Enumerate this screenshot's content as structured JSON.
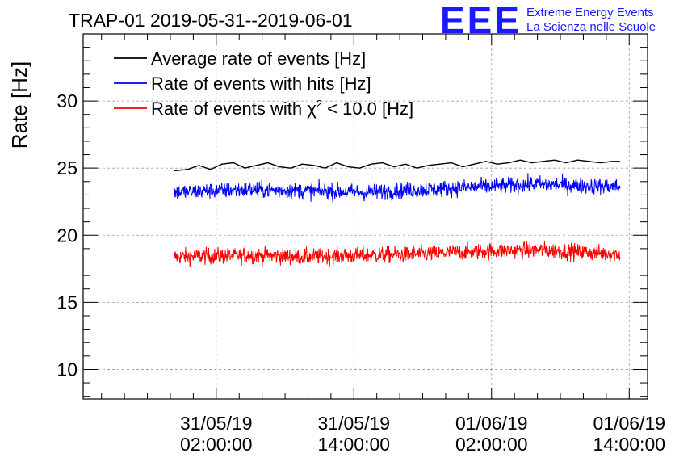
{
  "title": "TRAP-01 2019-05-31--2019-06-01",
  "logo": {
    "mark": "EEE",
    "line1": "Extreme Energy Events",
    "line2": "La Scienza nelle Scuole",
    "color": "#1a1aff"
  },
  "chart_data": {
    "type": "line",
    "title": "TRAP-01 2019-05-31--2019-06-01",
    "xlabel": "",
    "ylabel": "Rate [Hz]",
    "ylim": [
      7.8,
      35.0
    ],
    "xlim_hours": [
      -9.6,
      39.6
    ],
    "x_unit": "hours since 2019-05-31 00:00",
    "grid": true,
    "legend_position": "top-left",
    "x_ticks": [
      {
        "hour": 2,
        "date": "31/05/19",
        "time": "02:00:00"
      },
      {
        "hour": 14,
        "date": "31/05/19",
        "time": "14:00:00"
      },
      {
        "hour": 26,
        "date": "01/06/19",
        "time": "02:00:00"
      },
      {
        "hour": 38,
        "date": "01/06/19",
        "time": "14:00:00"
      }
    ],
    "y_ticks": [
      10,
      15,
      20,
      25,
      30
    ],
    "data_range_hours": [
      -1.7,
      37.2
    ],
    "series": [
      {
        "name": "Average rate of events [Hz]",
        "color": "#000000",
        "x": [
          -1.7,
          -0.5,
          0.5,
          1.5,
          2.5,
          3.5,
          4.5,
          5.5,
          6.5,
          7.5,
          8.5,
          9.5,
          10.5,
          11.5,
          12.5,
          13.5,
          14.5,
          15.5,
          16.5,
          17.5,
          18.5,
          19.5,
          20.5,
          21.5,
          22.5,
          23.5,
          24.5,
          25.5,
          26.5,
          27.5,
          28.5,
          29.5,
          30.5,
          31.5,
          32.5,
          33.5,
          34.5,
          35.5,
          36.5,
          37.2
        ],
        "values": [
          24.8,
          24.9,
          25.2,
          24.9,
          25.3,
          25.4,
          25.0,
          25.2,
          25.4,
          25.1,
          25.0,
          25.3,
          25.2,
          25.0,
          25.4,
          25.1,
          25.0,
          25.3,
          25.4,
          25.1,
          25.3,
          25.0,
          25.2,
          25.3,
          25.4,
          25.1,
          25.3,
          25.5,
          25.3,
          25.4,
          25.6,
          25.4,
          25.5,
          25.6,
          25.4,
          25.6,
          25.5,
          25.4,
          25.5,
          25.5
        ]
      },
      {
        "name": "Rate of events with hits [Hz]",
        "color": "#0000ff",
        "mean": 23.5,
        "noise_range": [
          22.0,
          26.0
        ],
        "x": [
          -1.7,
          5,
          10,
          15,
          20,
          25,
          30,
          37.2
        ],
        "values": [
          23.2,
          23.4,
          23.3,
          23.2,
          23.4,
          23.6,
          23.8,
          23.6
        ]
      },
      {
        "name": "Rate of events with χ² < 10.0 [Hz]",
        "color": "#ff0000",
        "mean": 18.5,
        "noise_range": [
          16.9,
          20.5
        ],
        "x": [
          -1.7,
          5,
          10,
          15,
          20,
          25,
          30,
          37.2
        ],
        "values": [
          18.4,
          18.5,
          18.4,
          18.5,
          18.6,
          18.8,
          18.9,
          18.6
        ]
      }
    ]
  },
  "legend": {
    "avg": "Average rate of events [Hz]",
    "hits": "Rate of events with hits [Hz]",
    "chi_prefix": "Rate of events with ",
    "chi_symbol": "χ",
    "chi_sup": "2",
    "chi_suffix": " < 10.0 [Hz]"
  }
}
